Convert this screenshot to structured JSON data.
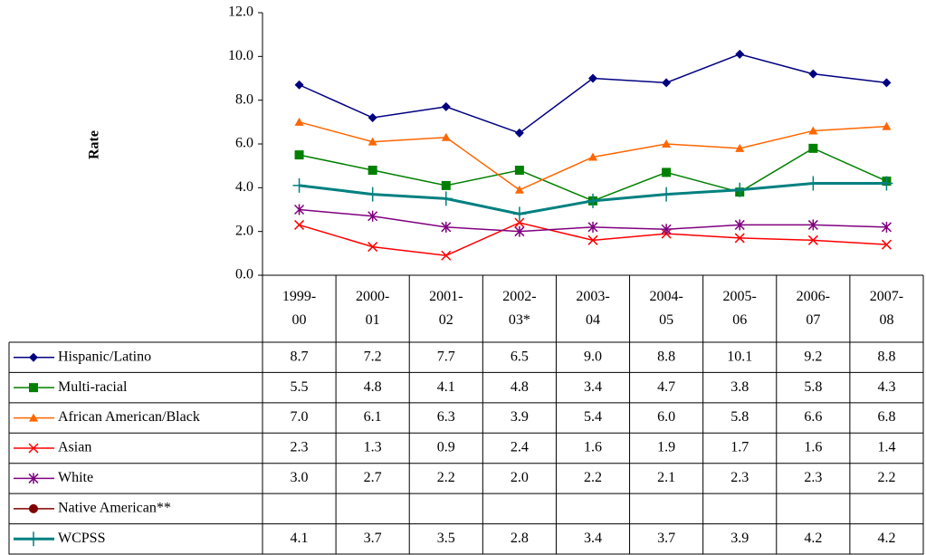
{
  "chart_data": {
    "type": "line",
    "ylabel": "Rate",
    "categories": [
      "1999-00",
      "2000-01",
      "2001-02",
      "2002-03*",
      "2003-04",
      "2004-05",
      "2005-06",
      "2006-07",
      "2007-08"
    ],
    "ylim": [
      0,
      12
    ],
    "yticks": [
      {
        "value": 0,
        "label": "0.0"
      },
      {
        "value": 2,
        "label": "2.0"
      },
      {
        "value": 4,
        "label": "4.0"
      },
      {
        "value": 6,
        "label": "6.0"
      },
      {
        "value": 8,
        "label": "8.0"
      },
      {
        "value": 10,
        "label": "10.0"
      },
      {
        "value": 12,
        "label": "12.0"
      }
    ],
    "grid": false,
    "series": [
      {
        "name": "Hispanic/Latino",
        "color": "#000080",
        "marker": "diamond",
        "values": [
          8.7,
          7.2,
          7.7,
          6.5,
          9.0,
          8.8,
          10.1,
          9.2,
          8.8
        ],
        "value_labels": [
          "8.7",
          "7.2",
          "7.7",
          "6.5",
          "9.0",
          "8.8",
          "10.1",
          "9.2",
          "8.8"
        ]
      },
      {
        "name": "Multi-racial",
        "color": "#008000",
        "marker": "square",
        "values": [
          5.5,
          4.8,
          4.1,
          4.8,
          3.4,
          4.7,
          3.8,
          5.8,
          4.3
        ],
        "value_labels": [
          "5.5",
          "4.8",
          "4.1",
          "4.8",
          "3.4",
          "4.7",
          "3.8",
          "5.8",
          "4.3"
        ]
      },
      {
        "name": "African American/Black",
        "color": "#FF6600",
        "marker": "triangle",
        "values": [
          7.0,
          6.1,
          6.3,
          3.9,
          5.4,
          6.0,
          5.8,
          6.6,
          6.8
        ],
        "value_labels": [
          "7.0",
          "6.1",
          "6.3",
          "3.9",
          "5.4",
          "6.0",
          "5.8",
          "6.6",
          "6.8"
        ]
      },
      {
        "name": "Asian",
        "color": "#FF0000",
        "marker": "x",
        "values": [
          2.3,
          1.3,
          0.9,
          2.4,
          1.6,
          1.9,
          1.7,
          1.6,
          1.4
        ],
        "value_labels": [
          "2.3",
          "1.3",
          "0.9",
          "2.4",
          "1.6",
          "1.9",
          "1.7",
          "1.6",
          "1.4"
        ]
      },
      {
        "name": "White",
        "color": "#800080",
        "marker": "asterisk",
        "values": [
          3.0,
          2.7,
          2.2,
          2.0,
          2.2,
          2.1,
          2.3,
          2.3,
          2.2
        ],
        "value_labels": [
          "3.0",
          "2.7",
          "2.2",
          "2.0",
          "2.2",
          "2.1",
          "2.3",
          "2.3",
          "2.2"
        ]
      },
      {
        "name": "Native American**",
        "color": "#800000",
        "marker": "circle",
        "values": [
          null,
          null,
          null,
          null,
          null,
          null,
          null,
          null,
          null
        ]
      },
      {
        "name": "WCPSS",
        "color": "#008080",
        "marker": "plus",
        "width": 3,
        "values": [
          4.1,
          3.7,
          3.5,
          2.8,
          3.4,
          3.7,
          3.9,
          4.2,
          4.2
        ],
        "value_labels": [
          "4.1",
          "3.7",
          "3.5",
          "2.8",
          "3.4",
          "3.7",
          "3.9",
          "4.2",
          "4.2"
        ]
      }
    ]
  }
}
